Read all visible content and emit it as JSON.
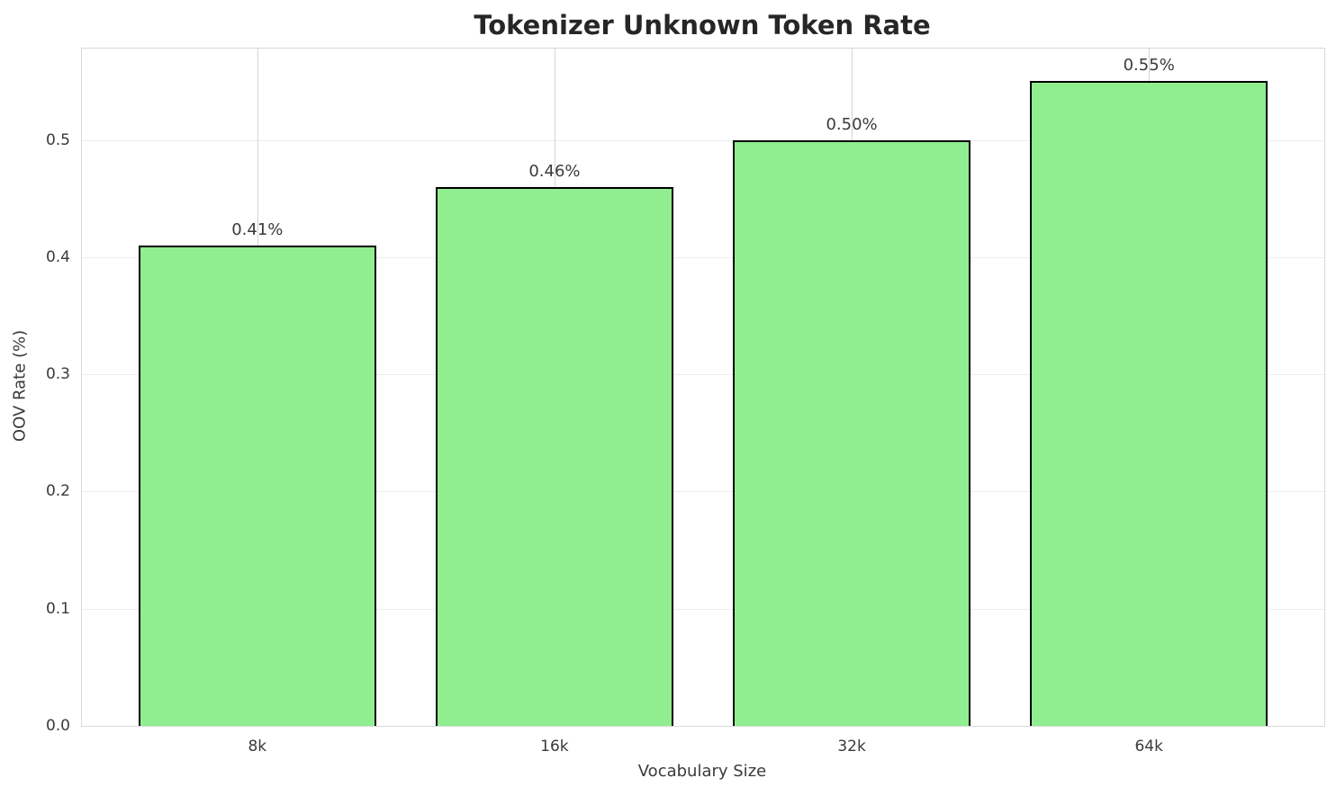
{
  "chart_data": {
    "type": "bar",
    "title": "Tokenizer Unknown Token Rate",
    "xlabel": "Vocabulary Size",
    "ylabel": "OOV Rate (%)",
    "categories": [
      "8k",
      "16k",
      "32k",
      "64k"
    ],
    "values": [
      0.41,
      0.46,
      0.5,
      0.55
    ],
    "bar_labels": [
      "0.41%",
      "0.46%",
      "0.50%",
      "0.55%"
    ],
    "yticks": [
      0.0,
      0.1,
      0.2,
      0.3,
      0.4,
      0.5
    ],
    "ytick_labels": [
      "0.0",
      "0.1",
      "0.2",
      "0.3",
      "0.4",
      "0.5"
    ],
    "ylim": [
      0,
      0.578
    ],
    "xlim": [
      -0.59,
      3.59
    ],
    "bar_width_fraction": 0.8,
    "grid": true,
    "legend_position": "none",
    "colors": {
      "bar_fill": "#90EE90",
      "bar_edge": "#000000",
      "grid_horizontal": "#ededed",
      "grid_vertical": "#d5d5d5",
      "spine": "#d9d9d9",
      "title_text": "#262626",
      "tick_text": "#3a3a3a"
    }
  }
}
